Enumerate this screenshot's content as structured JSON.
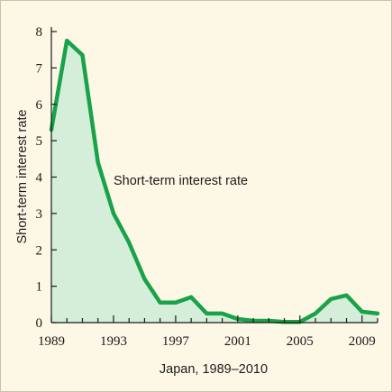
{
  "chart_data": {
    "type": "area",
    "title": "",
    "xlabel": "Japan, 1989–2010",
    "ylabel": "Short-term interest rate",
    "annotation": "Short-term interest rate",
    "xlim": [
      1989,
      2010
    ],
    "ylim": [
      0,
      8
    ],
    "xticks": [
      1989,
      1993,
      1997,
      2001,
      2005,
      2009
    ],
    "yticks": [
      0,
      1,
      2,
      3,
      4,
      5,
      6,
      7,
      8
    ],
    "grid": false,
    "colors": {
      "line": "#1aa24a",
      "fill": "#d4eed9",
      "background": "#fdf8e6",
      "border": "#c9c3a6"
    },
    "series": [
      {
        "x": [
          1989,
          1990,
          1991,
          1992,
          1993,
          1994,
          1995,
          1996,
          1997,
          1998,
          1999,
          2000,
          2001,
          2002,
          2003,
          2004,
          2005,
          2006,
          2007,
          2008,
          2009,
          2010
        ],
        "values": [
          5.3,
          7.75,
          7.35,
          4.4,
          3.0,
          2.2,
          1.2,
          0.55,
          0.55,
          0.7,
          0.25,
          0.25,
          0.1,
          0.05,
          0.05,
          0.02,
          0.02,
          0.25,
          0.65,
          0.75,
          0.3,
          0.25
        ]
      }
    ]
  }
}
